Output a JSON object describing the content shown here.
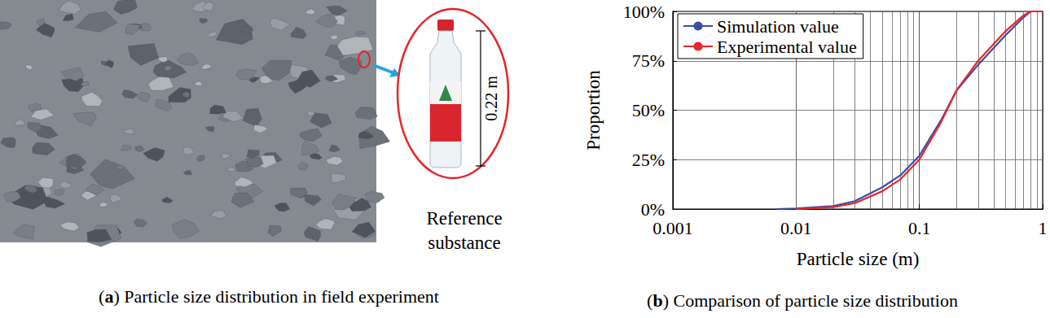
{
  "panel_a": {
    "caption": "(a) Particle size distribution in field experiment",
    "callout_label": "Reference substance",
    "dimension": "0.22 m"
  },
  "chart_data": {
    "type": "line",
    "title": "(b) Comparison of particle size distribution",
    "x_label": "Particle size (m)",
    "y_label": "Proportion",
    "x": [
      0.007,
      0.01,
      0.02,
      0.03,
      0.05,
      0.07,
      0.1,
      0.15,
      0.2,
      0.3,
      0.5,
      0.7,
      0.8,
      1
    ],
    "series": [
      {
        "name": "Simulation value",
        "color": "#3b4ea6",
        "values": [
          0,
          0.3,
          1.5,
          4,
          11,
          17,
          27,
          45,
          60,
          73,
          88,
          97,
          100,
          100
        ]
      },
      {
        "name": "Experimental value",
        "color": "#e8262b",
        "values": [
          null,
          0,
          1,
          3,
          9,
          15,
          25,
          44,
          60,
          75,
          90,
          98,
          100,
          100
        ]
      }
    ],
    "log": "x",
    "xlim": [
      0.001,
      1
    ],
    "xticks": [
      0.001,
      0.01,
      0.1,
      1
    ],
    "ylim": [
      0,
      100
    ],
    "yticks": [
      {
        "value": 0,
        "label": "0%"
      },
      {
        "value": 25,
        "label": "25%"
      },
      {
        "value": 50,
        "label": "50%"
      },
      {
        "value": 75,
        "label": "75%"
      },
      {
        "value": 100,
        "label": "100%"
      }
    ],
    "grid": true,
    "legend": "upper left",
    "marker": "none",
    "line_style": "solid"
  }
}
